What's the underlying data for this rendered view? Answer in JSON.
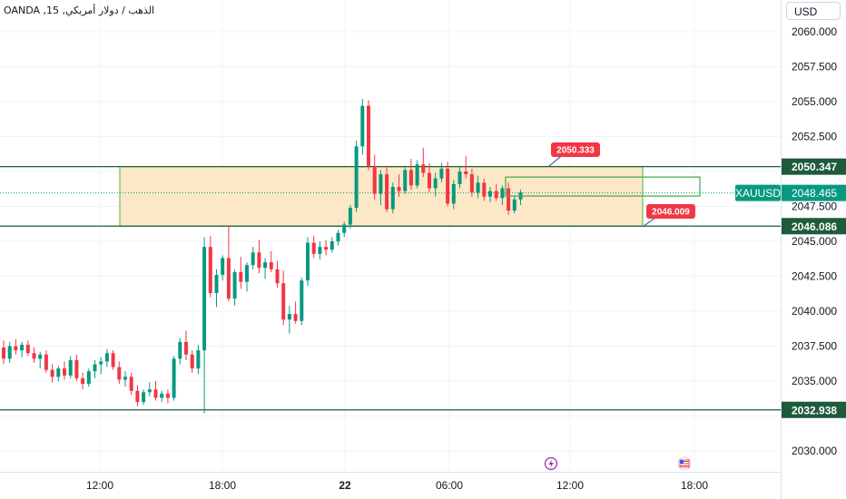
{
  "header": {
    "symbol_title": "OANDA ,15 ,الذهب / دولار أمريكي",
    "currency": "USD"
  },
  "chart_data": {
    "type": "candlestick",
    "y_ticks": [
      "2060.000",
      "2057.500",
      "2055.000",
      "2052.500",
      "2047.500",
      "2045.000",
      "2042.500",
      "2040.000",
      "2037.500",
      "2035.000",
      "2030.000"
    ],
    "x_ticks": [
      "12:00",
      "18:00",
      "22",
      "06:00",
      "12:00",
      "18:00"
    ],
    "ylim": [
      2029.2,
      2061.2
    ],
    "up_color": "#089981",
    "down_color": "#f23645",
    "zone_fill": "#fce8c6",
    "line_color": "#1e5a3c",
    "price_lines": [
      {
        "label": "2050.347",
        "value": 2050.347
      },
      {
        "label": "2046.086",
        "value": 2046.086
      },
      {
        "label": "2032.938",
        "value": 2032.938
      }
    ],
    "current_price": {
      "symbol": "XAUUSD",
      "label": "2048.465",
      "value": 2048.465
    },
    "callouts": [
      {
        "label": "2050.333",
        "value": 2050.333
      },
      {
        "label": "2046.009",
        "value": 2046.009
      }
    ],
    "event_icons": [
      "lightning-icon",
      "flag-icon"
    ],
    "candles": [
      [
        2037.4,
        2037.9,
        2036.2,
        2036.6
      ],
      [
        2036.6,
        2037.8,
        2036.3,
        2037.5
      ],
      [
        2037.5,
        2038.0,
        2036.9,
        2037.2
      ],
      [
        2037.2,
        2037.8,
        2036.7,
        2037.6
      ],
      [
        2037.6,
        2037.9,
        2036.8,
        2037.0
      ],
      [
        2037.0,
        2037.4,
        2036.3,
        2036.6
      ],
      [
        2036.6,
        2037.1,
        2035.9,
        2036.9
      ],
      [
        2036.9,
        2037.2,
        2035.6,
        2035.8
      ],
      [
        2035.8,
        2036.2,
        2034.9,
        2035.3
      ],
      [
        2035.3,
        2036.1,
        2035.0,
        2035.9
      ],
      [
        2035.9,
        2036.4,
        2035.1,
        2035.4
      ],
      [
        2035.4,
        2036.8,
        2035.2,
        2036.5
      ],
      [
        2036.5,
        2036.9,
        2035.0,
        2035.2
      ],
      [
        2035.2,
        2035.6,
        2034.4,
        2034.8
      ],
      [
        2034.8,
        2035.9,
        2034.6,
        2035.7
      ],
      [
        2035.7,
        2036.5,
        2035.2,
        2036.2
      ],
      [
        2036.2,
        2036.7,
        2035.5,
        2036.4
      ],
      [
        2036.4,
        2037.3,
        2036.0,
        2037.0
      ],
      [
        2037.0,
        2037.2,
        2035.8,
        2036.0
      ],
      [
        2036.0,
        2036.4,
        2034.8,
        2035.1
      ],
      [
        2035.1,
        2035.7,
        2034.6,
        2035.3
      ],
      [
        2035.3,
        2035.6,
        2034.0,
        2034.3
      ],
      [
        2034.3,
        2034.7,
        2033.2,
        2033.5
      ],
      [
        2033.5,
        2034.4,
        2033.3,
        2034.2
      ],
      [
        2034.2,
        2034.9,
        2033.9,
        2034.4
      ],
      [
        2034.4,
        2035.0,
        2033.6,
        2033.8
      ],
      [
        2033.8,
        2034.3,
        2033.5,
        2034.1
      ],
      [
        2034.1,
        2034.4,
        2033.4,
        2033.8
      ],
      [
        2033.8,
        2036.8,
        2033.6,
        2036.6
      ],
      [
        2036.6,
        2038.1,
        2036.2,
        2037.8
      ],
      [
        2037.8,
        2038.6,
        2036.5,
        2036.9
      ],
      [
        2036.9,
        2037.2,
        2035.6,
        2035.9
      ],
      [
        2035.9,
        2037.6,
        2035.5,
        2037.2
      ],
      [
        2037.2,
        2045.3,
        2032.7,
        2044.6
      ],
      [
        2044.6,
        2045.4,
        2041.0,
        2041.3
      ],
      [
        2041.3,
        2043.0,
        2040.3,
        2042.6
      ],
      [
        2042.6,
        2044.0,
        2042.2,
        2043.8
      ],
      [
        2043.8,
        2046.1,
        2040.7,
        2040.9
      ],
      [
        2040.9,
        2043.0,
        2040.4,
        2042.8
      ],
      [
        2042.8,
        2043.9,
        2041.6,
        2042.1
      ],
      [
        2042.1,
        2043.5,
        2041.4,
        2043.3
      ],
      [
        2043.3,
        2044.6,
        2043.0,
        2044.2
      ],
      [
        2044.2,
        2045.1,
        2042.7,
        2043.1
      ],
      [
        2043.1,
        2043.8,
        2042.3,
        2043.5
      ],
      [
        2043.5,
        2044.3,
        2042.8,
        2043.0
      ],
      [
        2043.0,
        2043.6,
        2041.7,
        2042.0
      ],
      [
        2042.0,
        2042.9,
        2039.0,
        2039.4
      ],
      [
        2039.4,
        2040.4,
        2038.4,
        2039.8
      ],
      [
        2039.8,
        2040.7,
        2039.1,
        2039.3
      ],
      [
        2039.3,
        2042.4,
        2039.0,
        2042.2
      ],
      [
        2042.2,
        2045.3,
        2041.8,
        2044.9
      ],
      [
        2044.9,
        2045.4,
        2043.8,
        2044.1
      ],
      [
        2044.1,
        2045.0,
        2043.7,
        2044.6
      ],
      [
        2044.6,
        2045.1,
        2044.0,
        2044.4
      ],
      [
        2044.4,
        2045.3,
        2044.2,
        2045.0
      ],
      [
        2045.0,
        2045.8,
        2044.7,
        2045.6
      ],
      [
        2045.6,
        2046.4,
        2045.3,
        2046.2
      ],
      [
        2046.2,
        2047.6,
        2045.9,
        2047.4
      ],
      [
        2047.4,
        2052.2,
        2047.1,
        2051.8
      ],
      [
        2051.8,
        2055.2,
        2051.2,
        2054.7
      ],
      [
        2054.7,
        2055.1,
        2050.1,
        2050.4
      ],
      [
        2050.4,
        2051.2,
        2048.0,
        2048.4
      ],
      [
        2048.4,
        2050.1,
        2047.6,
        2049.8
      ],
      [
        2049.8,
        2050.4,
        2047.1,
        2047.3
      ],
      [
        2047.3,
        2049.2,
        2047.0,
        2048.9
      ],
      [
        2048.9,
        2049.8,
        2048.2,
        2048.6
      ],
      [
        2048.6,
        2050.3,
        2048.4,
        2050.1
      ],
      [
        2050.1,
        2050.9,
        2048.7,
        2049.0
      ],
      [
        2049.0,
        2050.8,
        2048.8,
        2050.5
      ],
      [
        2050.5,
        2051.7,
        2049.6,
        2049.9
      ],
      [
        2049.9,
        2050.6,
        2048.5,
        2048.8
      ],
      [
        2048.8,
        2049.9,
        2048.2,
        2049.5
      ],
      [
        2049.5,
        2050.6,
        2049.2,
        2050.2
      ],
      [
        2050.2,
        2050.7,
        2047.5,
        2047.7
      ],
      [
        2047.7,
        2049.4,
        2047.3,
        2049.1
      ],
      [
        2049.1,
        2050.4,
        2048.8,
        2050.0
      ],
      [
        2050.0,
        2051.1,
        2049.5,
        2049.8
      ],
      [
        2049.8,
        2050.2,
        2048.2,
        2048.5
      ],
      [
        2048.5,
        2049.7,
        2048.1,
        2049.2
      ],
      [
        2049.2,
        2049.5,
        2047.9,
        2048.2
      ],
      [
        2048.2,
        2048.9,
        2047.8,
        2048.6
      ],
      [
        2048.6,
        2049.1,
        2047.9,
        2048.1
      ],
      [
        2048.1,
        2049.0,
        2047.6,
        2048.8
      ],
      [
        2048.8,
        2049.2,
        2046.9,
        2047.2
      ],
      [
        2047.2,
        2048.3,
        2047.0,
        2048.0
      ],
      [
        2048.0,
        2048.7,
        2047.6,
        2048.5
      ]
    ]
  }
}
